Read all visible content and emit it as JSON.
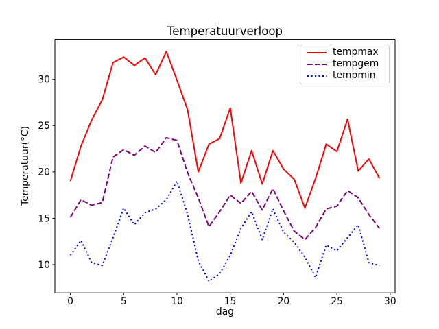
{
  "title": "Temperatuurverloop",
  "xlabel": "dag",
  "ylabel": "Temperatuur(°C)",
  "colors": {
    "tempmax": "#ff0000",
    "tempgem": "#800080",
    "tempmin": "#0000ff",
    "text": "#000000",
    "spine": "#000000",
    "legend_border": "#cccccc",
    "background": "#ffffff"
  },
  "legend": {
    "position": "top-right",
    "entries": [
      {
        "label": "tempmax",
        "style": "solid",
        "color": "#ff0000"
      },
      {
        "label": "tempgem",
        "style": "dashed",
        "color": "#800080"
      },
      {
        "label": "tempmin",
        "style": "dotted",
        "color": "#0000ff"
      }
    ]
  },
  "chart_data": {
    "type": "line",
    "title": "Temperatuurverloop",
    "xlabel": "dag",
    "ylabel": "Temperatuur(°C)",
    "grid": false,
    "xlim": [
      -1.45,
      30.46
    ],
    "ylim": [
      6.95,
      34.3
    ],
    "xticks": [
      0,
      5,
      10,
      15,
      20,
      25,
      30
    ],
    "yticks": [
      10,
      15,
      20,
      25,
      30
    ],
    "x": [
      0,
      1,
      2,
      3,
      4,
      5,
      6,
      7,
      8,
      9,
      10,
      11,
      12,
      13,
      14,
      15,
      16,
      17,
      18,
      19,
      20,
      21,
      22,
      23,
      24,
      25,
      26,
      27,
      28,
      29
    ],
    "series": [
      {
        "name": "tempmax",
        "style": "solid",
        "color": "#ff0000",
        "values": [
          19.0,
          22.8,
          25.6,
          27.8,
          31.8,
          32.4,
          31.5,
          32.3,
          30.5,
          33.0,
          29.9,
          26.7,
          20.0,
          23.0,
          23.6,
          26.9,
          18.8,
          22.3,
          18.7,
          22.3,
          20.3,
          19.2,
          16.1,
          19.3,
          23.0,
          22.2,
          25.7,
          20.1,
          21.4,
          19.3
        ]
      },
      {
        "name": "tempgem",
        "style": "dashed",
        "color": "#800080",
        "values": [
          15.1,
          17.0,
          16.4,
          16.7,
          21.6,
          22.4,
          21.8,
          22.8,
          22.1,
          23.7,
          23.4,
          19.9,
          17.2,
          14.1,
          15.7,
          17.5,
          16.6,
          17.9,
          15.9,
          18.2,
          15.8,
          13.6,
          12.7,
          14.0,
          16.0,
          16.3,
          18.0,
          17.2,
          15.4,
          13.9
        ]
      },
      {
        "name": "tempmin",
        "style": "dotted",
        "color": "#0000ff",
        "values": [
          11.0,
          12.6,
          10.2,
          9.9,
          12.9,
          16.1,
          14.3,
          15.6,
          16.0,
          17.0,
          19.0,
          15.4,
          10.4,
          8.2,
          9.0,
          11.0,
          13.9,
          15.7,
          12.7,
          16.0,
          13.5,
          12.4,
          10.8,
          8.6,
          12.1,
          11.5,
          12.9,
          14.3,
          10.2,
          9.9
        ]
      }
    ]
  }
}
